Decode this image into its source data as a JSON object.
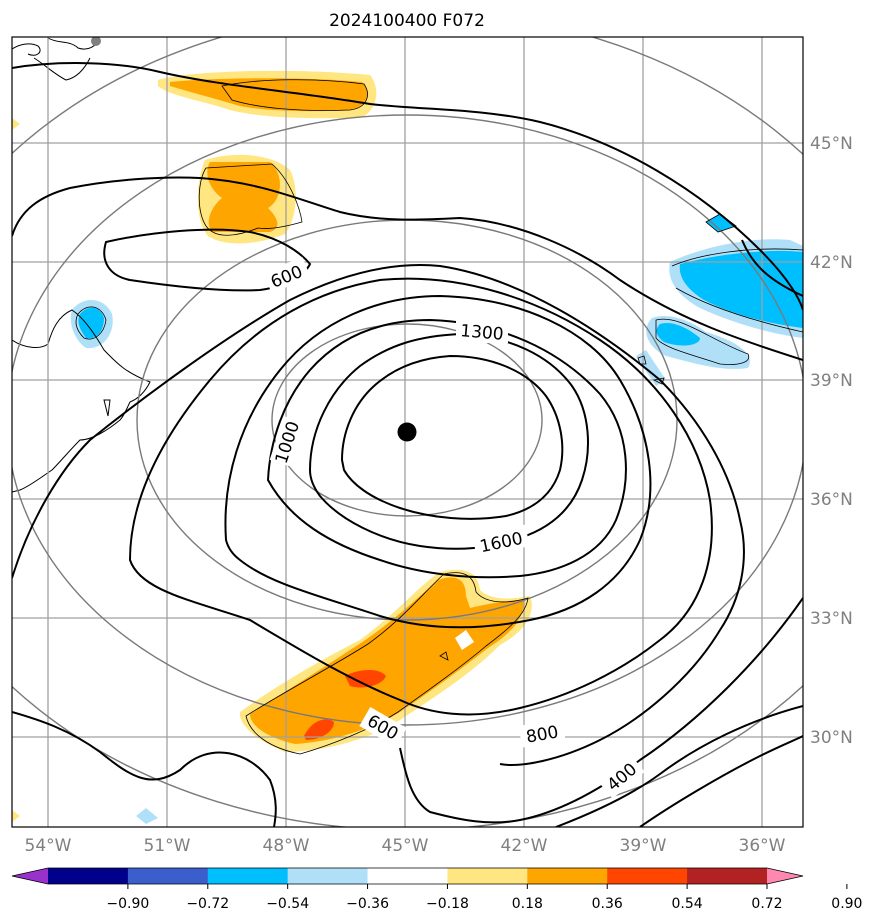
{
  "title": "2024100400 F072",
  "map": {
    "lon_range": [
      -55,
      -35
    ],
    "lat_range": [
      28,
      48
    ],
    "lon_ticks": [
      "54°W",
      "51°W",
      "48°W",
      "45°W",
      "42°W",
      "39°W",
      "36°W"
    ],
    "lat_ticks": [
      "45°N",
      "42°N",
      "39°N",
      "36°N",
      "33°N",
      "30°N"
    ],
    "center_marker": {
      "lon": -45,
      "lat": 37.7
    },
    "contour_labels": [
      "600",
      "1300",
      "1000",
      "1600",
      "600",
      "800",
      "400"
    ],
    "fill_colors": {
      "orange": "#ffa500",
      "light_yellow": "#ffe680",
      "red_orange": "#ff4500",
      "deep_sky_blue": "#00bfff",
      "light_blue": "#b0e0f8"
    }
  },
  "colorbar": {
    "colors": [
      "#9932cc",
      "#00008b",
      "#3a5fcd",
      "#00bfff",
      "#b0e0f8",
      "#ffffff",
      "#ffe680",
      "#ffa500",
      "#ff4500",
      "#b22222",
      "#ff88b0"
    ],
    "tick_labels": [
      "−0.90",
      "−0.72",
      "−0.54",
      "−0.36",
      "−0.18",
      "0.18",
      "0.36",
      "0.54",
      "0.72",
      "0.90"
    ]
  }
}
